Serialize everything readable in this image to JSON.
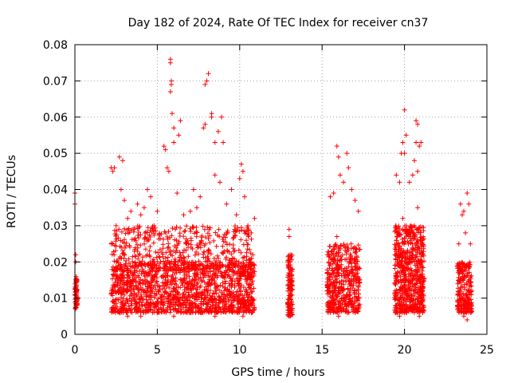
{
  "chart_data": {
    "type": "scatter",
    "title": "Day 182 of 2024, Rate Of TEC Index for receiver cn37",
    "xlabel": "GPS time / hours",
    "ylabel": "ROTI / TECUs",
    "xlim": [
      0,
      25
    ],
    "ylim": [
      0,
      0.08
    ],
    "x_ticks": [
      0,
      5,
      10,
      15,
      20,
      25
    ],
    "x_tick_labels": [
      "0",
      "5",
      "10",
      "15",
      "20",
      "25"
    ],
    "y_ticks": [
      0,
      0.01,
      0.02,
      0.03,
      0.04,
      0.05,
      0.06,
      0.07,
      0.08
    ],
    "y_tick_labels": [
      "0",
      "0.01",
      "0.02",
      "0.03",
      "0.04",
      "0.05",
      "0.06",
      "0.07",
      "0.08"
    ],
    "grid": true,
    "marker": "+",
    "color": "#ff0000",
    "series": [
      {
        "name": "ROTI",
        "points": [
          [
            0.0,
            0.039
          ],
          [
            0.0,
            0.036
          ],
          [
            0.05,
            0.022
          ],
          [
            0.05,
            0.015
          ],
          [
            0.1,
            0.012
          ],
          [
            0.1,
            0.009
          ],
          [
            0.05,
            0.02
          ],
          [
            0.0,
            0.011
          ],
          [
            2.2,
            0.046
          ],
          [
            2.3,
            0.045
          ],
          [
            2.4,
            0.046
          ],
          [
            2.5,
            0.03
          ],
          [
            2.7,
            0.049
          ],
          [
            2.8,
            0.04
          ],
          [
            2.9,
            0.048
          ],
          [
            3.0,
            0.037
          ],
          [
            2.3,
            0.025
          ],
          [
            2.5,
            0.018
          ],
          [
            2.6,
            0.012
          ],
          [
            2.8,
            0.021
          ],
          [
            3.0,
            0.008
          ],
          [
            3.2,
            0.032
          ],
          [
            3.4,
            0.034
          ],
          [
            3.6,
            0.029
          ],
          [
            3.8,
            0.036
          ],
          [
            4.0,
            0.033
          ],
          [
            4.2,
            0.035
          ],
          [
            4.4,
            0.04
          ],
          [
            4.6,
            0.038
          ],
          [
            4.8,
            0.03
          ],
          [
            3.5,
            0.015
          ],
          [
            3.9,
            0.01
          ],
          [
            4.3,
            0.006
          ],
          [
            4.7,
            0.012
          ],
          [
            5.0,
            0.034
          ],
          [
            5.2,
            0.02
          ],
          [
            5.4,
            0.052
          ],
          [
            5.5,
            0.051
          ],
          [
            5.6,
            0.046
          ],
          [
            5.7,
            0.045
          ],
          [
            5.8,
            0.075
          ],
          [
            5.8,
            0.076
          ],
          [
            5.85,
            0.07
          ],
          [
            5.85,
            0.069
          ],
          [
            5.8,
            0.067
          ],
          [
            5.9,
            0.061
          ],
          [
            6.0,
            0.057
          ],
          [
            6.0,
            0.053
          ],
          [
            6.2,
            0.039
          ],
          [
            6.4,
            0.059
          ],
          [
            6.3,
            0.055
          ],
          [
            6.6,
            0.033
          ],
          [
            7.0,
            0.034
          ],
          [
            7.2,
            0.04
          ],
          [
            7.4,
            0.035
          ],
          [
            7.6,
            0.038
          ],
          [
            7.8,
            0.057
          ],
          [
            7.9,
            0.058
          ],
          [
            7.9,
            0.069
          ],
          [
            8.0,
            0.07
          ],
          [
            8.1,
            0.072
          ],
          [
            8.3,
            0.06
          ],
          [
            8.3,
            0.061
          ],
          [
            8.5,
            0.053
          ],
          [
            8.7,
            0.056
          ],
          [
            8.9,
            0.06
          ],
          [
            9.0,
            0.053
          ],
          [
            8.5,
            0.044
          ],
          [
            8.8,
            0.042
          ],
          [
            9.2,
            0.036
          ],
          [
            9.5,
            0.04
          ],
          [
            9.8,
            0.033
          ],
          [
            10.0,
            0.043
          ],
          [
            10.1,
            0.047
          ],
          [
            10.2,
            0.045
          ],
          [
            10.3,
            0.038
          ],
          [
            10.5,
            0.03
          ],
          [
            10.7,
            0.028
          ],
          [
            10.9,
            0.032
          ],
          [
            10.8,
            0.022
          ],
          [
            5.5,
            0.015
          ],
          [
            6.5,
            0.01
          ],
          [
            7.5,
            0.008
          ],
          [
            8.0,
            0.012
          ],
          [
            9.0,
            0.007
          ],
          [
            9.5,
            0.013
          ],
          [
            10.0,
            0.009
          ],
          [
            10.5,
            0.011
          ],
          [
            2.5,
            0.007
          ],
          [
            3.2,
            0.005
          ],
          [
            4.0,
            0.005
          ],
          [
            5.0,
            0.006
          ],
          [
            6.0,
            0.005
          ],
          [
            7.0,
            0.006
          ],
          [
            8.5,
            0.005
          ],
          [
            10.2,
            0.005
          ],
          [
            13.0,
            0.029
          ],
          [
            13.0,
            0.027
          ],
          [
            13.05,
            0.02
          ],
          [
            13.1,
            0.015
          ],
          [
            13.0,
            0.01
          ],
          [
            12.95,
            0.006
          ],
          [
            13.1,
            0.008
          ],
          [
            13.05,
            0.005
          ],
          [
            15.5,
            0.038
          ],
          [
            15.7,
            0.039
          ],
          [
            15.9,
            0.052
          ],
          [
            16.0,
            0.049
          ],
          [
            16.1,
            0.044
          ],
          [
            16.3,
            0.042
          ],
          [
            16.5,
            0.05
          ],
          [
            16.6,
            0.046
          ],
          [
            16.8,
            0.04
          ],
          [
            17.0,
            0.037
          ],
          [
            17.2,
            0.034
          ],
          [
            15.4,
            0.02
          ],
          [
            15.8,
            0.015
          ],
          [
            16.2,
            0.01
          ],
          [
            16.6,
            0.008
          ],
          [
            17.0,
            0.006
          ],
          [
            15.3,
            0.012
          ],
          [
            15.6,
            0.007
          ],
          [
            16.0,
            0.005
          ],
          [
            16.4,
            0.024
          ],
          [
            16.8,
            0.018
          ],
          [
            17.1,
            0.012
          ],
          [
            17.2,
            0.008
          ],
          [
            15.9,
            0.027
          ],
          [
            19.5,
            0.044
          ],
          [
            19.7,
            0.042
          ],
          [
            19.8,
            0.05
          ],
          [
            19.9,
            0.053
          ],
          [
            20.0,
            0.062
          ],
          [
            20.1,
            0.055
          ],
          [
            20.0,
            0.05
          ],
          [
            20.3,
            0.042
          ],
          [
            20.5,
            0.044
          ],
          [
            20.6,
            0.048
          ],
          [
            20.7,
            0.059
          ],
          [
            20.8,
            0.058
          ],
          [
            20.7,
            0.053
          ],
          [
            20.9,
            0.052
          ],
          [
            21.0,
            0.053
          ],
          [
            20.8,
            0.045
          ],
          [
            19.6,
            0.025
          ],
          [
            19.8,
            0.02
          ],
          [
            20.1,
            0.015
          ],
          [
            20.4,
            0.012
          ],
          [
            20.6,
            0.03
          ],
          [
            20.8,
            0.035
          ],
          [
            21.0,
            0.022
          ],
          [
            21.1,
            0.012
          ],
          [
            19.5,
            0.008
          ],
          [
            19.7,
            0.005
          ],
          [
            20.0,
            0.006
          ],
          [
            20.5,
            0.007
          ],
          [
            20.9,
            0.005
          ],
          [
            21.1,
            0.008
          ],
          [
            20.2,
            0.028
          ],
          [
            19.9,
            0.032
          ],
          [
            23.3,
            0.025
          ],
          [
            23.4,
            0.036
          ],
          [
            23.5,
            0.033
          ],
          [
            23.6,
            0.034
          ],
          [
            23.8,
            0.039
          ],
          [
            23.9,
            0.036
          ],
          [
            23.7,
            0.028
          ],
          [
            24.0,
            0.025
          ],
          [
            23.3,
            0.015
          ],
          [
            23.5,
            0.01
          ],
          [
            23.7,
            0.008
          ],
          [
            23.9,
            0.012
          ],
          [
            24.0,
            0.007
          ],
          [
            23.6,
            0.005
          ],
          [
            23.8,
            0.004
          ],
          [
            23.4,
            0.018
          ]
        ],
        "dense_bands": [
          {
            "x_range": [
              0.0,
              0.15
            ],
            "y_range": [
              0.007,
              0.016
            ],
            "count": 60
          },
          {
            "x_range": [
              2.2,
              10.9
            ],
            "y_range": [
              0.006,
              0.02
            ],
            "count": 1400
          },
          {
            "x_range": [
              2.2,
              10.9
            ],
            "y_range": [
              0.018,
              0.03
            ],
            "count": 450
          },
          {
            "x_range": [
              12.9,
              13.2
            ],
            "y_range": [
              0.005,
              0.022
            ],
            "count": 120
          },
          {
            "x_range": [
              15.3,
              17.3
            ],
            "y_range": [
              0.006,
              0.025
            ],
            "count": 450
          },
          {
            "x_range": [
              19.4,
              21.2
            ],
            "y_range": [
              0.006,
              0.03
            ],
            "count": 650
          },
          {
            "x_range": [
              23.2,
              24.1
            ],
            "y_range": [
              0.006,
              0.02
            ],
            "count": 220
          }
        ]
      }
    ]
  }
}
